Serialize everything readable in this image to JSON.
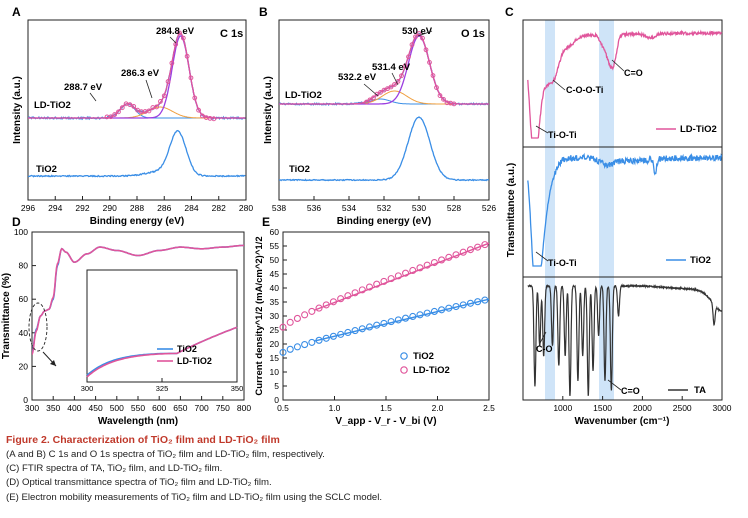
{
  "colors": {
    "blue": "#3a8ee6",
    "pink": "#e0559b",
    "orange": "#f0a040",
    "purple": "#9c3fe0",
    "dark": "#333333",
    "band": "#c7dff7"
  },
  "panels": {
    "A": {
      "letter": "A",
      "title": "C 1s",
      "xlabel": "Binding energy (eV)",
      "ylabel": "Intensity (a.u.)",
      "xticks": [
        "296",
        "294",
        "292",
        "290",
        "288",
        "286",
        "284",
        "282",
        "280"
      ],
      "peaks": [
        "284.8 eV",
        "286.3 eV",
        "288.7 eV"
      ],
      "labels": {
        "ld": "LD-TiO2",
        "ti": "TiO2"
      }
    },
    "B": {
      "letter": "B",
      "title": "O 1s",
      "xlabel": "Binding energy (eV)",
      "ylabel": "Intensity (a.u.)",
      "xticks": [
        "538",
        "536",
        "534",
        "532",
        "530",
        "528",
        "526"
      ],
      "peaks": [
        "530 eV",
        "531.4 eV",
        "532.2 eV"
      ],
      "labels": {
        "ld": "LD-TiO2",
        "ti": "TiO2"
      }
    },
    "C": {
      "letter": "C",
      "xlabel": "Wavenumber (cm⁻¹)",
      "ylabel": "Transmittance (a.u.)",
      "xticks": [
        "1000",
        "1500",
        "2000",
        "2500",
        "3000"
      ],
      "annotations": {
        "coti": "C-O-O-Ti",
        "co_top": "C=O",
        "tioti1": "Ti-O-Ti",
        "tioti2": "Ti-O-Ti",
        "co_mid": "C-O",
        "co_bot": "C=O"
      },
      "legends": {
        "ld": "LD-TiO2",
        "ti": "TiO2",
        "ta": "TA"
      }
    },
    "D": {
      "letter": "D",
      "xlabel": "Wavelength (nm)",
      "ylabel": "Transmittance (%)",
      "xticks": [
        "300",
        "350",
        "400",
        "450",
        "500",
        "550",
        "600",
        "650",
        "700",
        "750",
        "800"
      ],
      "yticks": [
        "0",
        "20",
        "40",
        "60",
        "80",
        "100"
      ],
      "inset_xticks": [
        "300",
        "325",
        "350"
      ],
      "legend": {
        "ti": "TiO2",
        "ld": "LD-TiO2"
      }
    },
    "E": {
      "letter": "E",
      "xlabel": "V_app - V_r - V_bi (V)",
      "ylabel": "Current density^1/2 (mA/cm^2)^1/2",
      "xticks": [
        "0.5",
        "1.0",
        "1.5",
        "2.0",
        "2.5"
      ],
      "yticks": [
        "0",
        "5",
        "10",
        "15",
        "20",
        "25",
        "30",
        "35",
        "40",
        "45",
        "50",
        "55",
        "60"
      ],
      "legend": {
        "ti": "TiO2",
        "ld": "LD-TiO2"
      }
    }
  },
  "caption": {
    "title": "Figure 2. Characterization of TiO₂ film and LD-TiO₂ film",
    "lines": [
      "(A and B) C 1s and O 1s spectra of TiO₂ film and LD-TiO₂ film, respectively.",
      "(C) FTIR spectra of TA, TiO₂ film, and LD-TiO₂ film.",
      "(D) Optical transmittance spectra of TiO₂ film and LD-TiO₂ film.",
      "(E) Electron mobility measurements of TiO₂ film and LD-TiO₂ film using the SCLC model."
    ]
  },
  "chart_data": [
    {
      "type": "line",
      "panel": "A",
      "title": "C 1s",
      "xlabel": "Binding energy (eV)",
      "ylabel": "Intensity (a.u.)",
      "xlim": [
        296,
        280
      ],
      "x_reversed": true,
      "series": [
        {
          "name": "LD-TiO2",
          "peaks_eV": [
            284.8,
            286.3,
            288.7
          ]
        },
        {
          "name": "TiO2",
          "peak_eV": 285.0
        }
      ]
    },
    {
      "type": "line",
      "panel": "B",
      "title": "O 1s",
      "xlabel": "Binding energy (eV)",
      "ylabel": "Intensity (a.u.)",
      "xlim": [
        538,
        526
      ],
      "x_reversed": true,
      "series": [
        {
          "name": "LD-TiO2",
          "peaks_eV": [
            530.0,
            531.4,
            532.2
          ]
        },
        {
          "name": "TiO2",
          "peak_eV": 530.0
        }
      ]
    },
    {
      "type": "line",
      "panel": "C",
      "xlabel": "Wavenumber (cm-1)",
      "ylabel": "Transmittance (a.u.)",
      "xlim": [
        500,
        3000
      ],
      "series": [
        {
          "name": "LD-TiO2"
        },
        {
          "name": "TiO2"
        },
        {
          "name": "TA"
        }
      ],
      "highlight_bands_cm-1": [
        [
          830,
          950
        ],
        [
          1510,
          1660
        ]
      ]
    },
    {
      "type": "line",
      "panel": "D",
      "xlabel": "Wavelength (nm)",
      "ylabel": "Transmittance (%)",
      "xlim": [
        300,
        800
      ],
      "ylim": [
        0,
        100
      ],
      "x": [
        300,
        310,
        320,
        330,
        340,
        350,
        360,
        370,
        380,
        400,
        430,
        460,
        500,
        550,
        600,
        650,
        700,
        750,
        800
      ],
      "series": [
        {
          "name": "TiO2",
          "values": [
            28,
            42,
            50,
            53,
            54,
            60,
            80,
            90,
            88,
            82,
            87,
            91,
            89,
            86,
            89,
            91,
            90,
            91,
            92
          ]
        },
        {
          "name": "LD-TiO2",
          "values": [
            27,
            41,
            50,
            53,
            54,
            61,
            81,
            90,
            88,
            82,
            87,
            91,
            89,
            86,
            89,
            91,
            90,
            91,
            92
          ]
        }
      ]
    },
    {
      "type": "scatter",
      "panel": "E",
      "xlabel": "V_app - V_r - V_bi (V)",
      "ylabel": "Current density^1/2 (mA/cm^2)^1/2",
      "xlim": [
        0.5,
        2.5
      ],
      "ylim": [
        0,
        60
      ],
      "series": [
        {
          "name": "TiO2",
          "x_range": [
            0.5,
            2.5
          ],
          "y_range": [
            17,
            36
          ],
          "fit": [
            [
              0.8,
              21
            ],
            [
              2.5,
              36
            ]
          ]
        },
        {
          "name": "LD-TiO2",
          "x_range": [
            0.5,
            2.5
          ],
          "y_range": [
            26,
            56
          ],
          "fit": [
            [
              0.8,
              32
            ],
            [
              2.5,
              56
            ]
          ]
        }
      ]
    }
  ]
}
